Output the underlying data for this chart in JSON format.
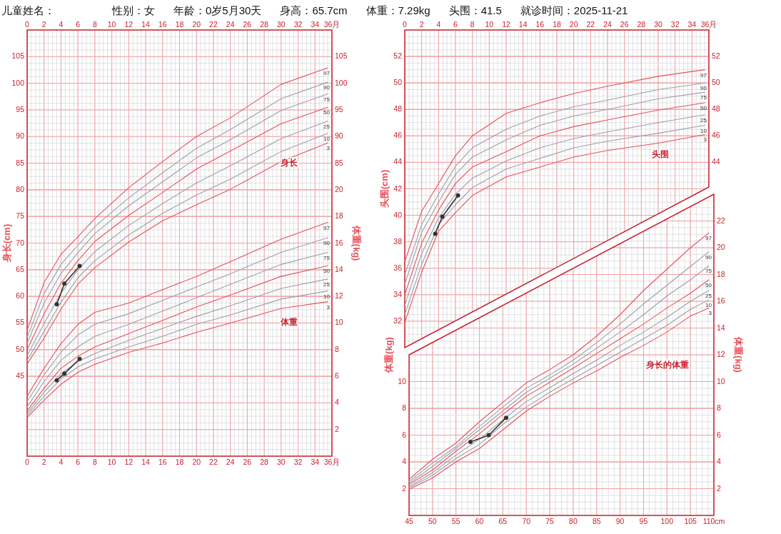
{
  "chart_data": [
    {
      "type": "other",
      "annotations": [
        "儿童姓名：",
        "性别：女",
        "年龄：0岁5月30天",
        "身高：65.7cm",
        "体重：7.29kg",
        "头围：41.5",
        "就诊时间：2025-11-21"
      ]
    },
    {
      "type": "line",
      "ylabel": "身长(cm)",
      "y2label": "体重(kg)",
      "grid": true,
      "xlim": [
        0,
        36
      ],
      "xticks": [
        0,
        2,
        4,
        6,
        8,
        10,
        12,
        14,
        16,
        18,
        20,
        22,
        24,
        26,
        28,
        30,
        32,
        34,
        {
          "value": 36,
          "label": "36月"
        }
      ],
      "x2lim": [
        0,
        36
      ],
      "x2ticks": [
        0,
        2,
        4,
        6,
        8,
        10,
        12,
        14,
        16,
        18,
        20,
        22,
        24,
        26,
        28,
        30,
        32,
        34,
        {
          "value": 36,
          "label": "36月"
        }
      ],
      "ylim": [
        30,
        110
      ],
      "yticks": [
        45,
        50,
        55,
        60,
        65,
        70,
        75,
        80,
        85,
        90,
        95,
        100,
        105
      ],
      "y2lim": [
        0,
        32
      ],
      "y2ticks": [
        2,
        4,
        6,
        8,
        10,
        12,
        14,
        16,
        18,
        20
      ],
      "y3lim": [
        30,
        110
      ],
      "y3ticks": [
        85,
        90,
        95,
        100,
        105
      ],
      "annotations": [
        "身长",
        "体重"
      ],
      "series": [
        {
          "name": "97",
          "color": "#e8505a",
          "x": [
            0,
            2,
            4,
            6,
            8,
            12,
            16,
            20,
            24,
            30,
            35.5
          ],
          "values": [
            53.6,
            62.6,
            67.9,
            71.2,
            74.6,
            80.4,
            85.3,
            90.0,
            93.5,
            99.8,
            102.9
          ]
        },
        {
          "name": "90",
          "color": "#9aa0a8",
          "x": [
            0,
            2,
            4,
            6,
            8,
            12,
            16,
            20,
            24,
            30,
            35.5
          ],
          "values": [
            52.3,
            60.5,
            66.0,
            69.6,
            73.1,
            78.5,
            83.2,
            87.8,
            91.3,
            97.1,
            100.2
          ]
        },
        {
          "name": "75",
          "color": "#9aa0a8",
          "x": [
            0,
            2,
            4,
            6,
            8,
            12,
            16,
            20,
            24,
            30,
            35.5
          ],
          "values": [
            51.2,
            58.7,
            64.3,
            68.2,
            71.8,
            77.0,
            81.5,
            86.0,
            89.4,
            94.9,
            98.0
          ]
        },
        {
          "name": "50",
          "color": "#e8505a",
          "x": [
            0,
            2,
            4,
            6,
            8,
            12,
            16,
            20,
            24,
            30,
            35.5
          ],
          "values": [
            50.0,
            56.7,
            62.5,
            66.7,
            70.3,
            75.2,
            79.5,
            83.9,
            87.3,
            92.4,
            95.5
          ]
        },
        {
          "name": "25",
          "color": "#9aa0a8",
          "x": [
            0,
            2,
            4,
            6,
            8,
            12,
            16,
            20,
            24,
            30,
            35.5
          ],
          "values": [
            48.9,
            54.9,
            60.6,
            65.0,
            68.4,
            73.3,
            77.4,
            81.3,
            84.5,
            89.6,
            92.9
          ]
        },
        {
          "name": "10",
          "color": "#9aa0a8",
          "x": [
            0,
            2,
            4,
            6,
            8,
            12,
            16,
            20,
            24,
            30,
            35.5
          ],
          "values": [
            48.0,
            53.4,
            58.9,
            63.5,
            66.7,
            71.5,
            75.6,
            79.0,
            82.0,
            87.2,
            90.6
          ]
        },
        {
          "name": "3",
          "color": "#e8505a",
          "x": [
            0,
            2,
            4,
            6,
            8,
            12,
            16,
            20,
            24,
            30,
            35.5
          ],
          "values": [
            47.3,
            52.2,
            57.6,
            62.3,
            65.4,
            70.2,
            74.2,
            77.2,
            80.1,
            85.3,
            88.8
          ]
        },
        {
          "name": "97",
          "color": "#e8505a",
          "axis": "y2",
          "x": [
            0,
            2,
            4,
            6,
            8,
            12,
            16,
            20,
            24,
            30,
            35.5
          ],
          "values": [
            4.5,
            6.6,
            8.45,
            9.9,
            10.8,
            11.5,
            12.5,
            13.5,
            14.6,
            16.3,
            17.55
          ]
        },
        {
          "name": "90",
          "color": "#9aa0a8",
          "axis": "y2",
          "x": [
            0,
            2,
            4,
            6,
            8,
            12,
            16,
            20,
            24,
            30,
            35.5
          ],
          "values": [
            4.1,
            6.1,
            7.8,
            9.1,
            9.9,
            10.7,
            11.7,
            12.7,
            13.7,
            15.3,
            16.4
          ]
        },
        {
          "name": "75",
          "color": "#9aa0a8",
          "axis": "y2",
          "x": [
            0,
            2,
            4,
            6,
            8,
            12,
            16,
            20,
            24,
            30,
            35.5
          ],
          "values": [
            3.7,
            5.6,
            7.2,
            8.2,
            9.0,
            9.9,
            10.9,
            11.9,
            12.9,
            14.4,
            15.3
          ]
        },
        {
          "name": "50",
          "color": "#e8505a",
          "axis": "y2",
          "x": [
            0,
            2,
            4,
            6,
            8,
            12,
            16,
            20,
            24,
            30,
            35.5
          ],
          "values": [
            3.4,
            5.1,
            6.6,
            7.5,
            8.2,
            9.2,
            10.2,
            11.2,
            12.1,
            13.5,
            14.3
          ]
        },
        {
          "name": "25",
          "color": "#9aa0a8",
          "axis": "y2",
          "x": [
            0,
            2,
            4,
            6,
            8,
            12,
            16,
            20,
            24,
            30,
            35.5
          ],
          "values": [
            3.2,
            4.8,
            6.2,
            7.1,
            7.7,
            8.7,
            9.6,
            10.5,
            11.3,
            12.6,
            13.3
          ]
        },
        {
          "name": "10",
          "color": "#9aa0a8",
          "axis": "y2",
          "x": [
            0,
            2,
            4,
            6,
            8,
            12,
            16,
            20,
            24,
            30,
            35.5
          ],
          "values": [
            3.05,
            4.5,
            5.8,
            6.7,
            7.3,
            8.2,
            9.0,
            9.9,
            10.6,
            11.8,
            12.4
          ]
        },
        {
          "name": "3",
          "color": "#e8505a",
          "axis": "y2",
          "x": [
            0,
            2,
            4,
            6,
            8,
            12,
            16,
            20,
            24,
            30,
            35.5
          ],
          "values": [
            2.9,
            4.2,
            5.4,
            6.3,
            6.9,
            7.8,
            8.5,
            9.3,
            10.0,
            11.1,
            11.6
          ]
        },
        {
          "color": "#333333",
          "marker": "circle",
          "x": [
            3.5,
            4.4,
            6.2
          ],
          "values": [
            58.5,
            62.4,
            65.7
          ]
        },
        {
          "color": "#333333",
          "marker": "circle",
          "axis": "y2",
          "x": [
            3.5,
            4.4,
            6.2
          ],
          "values": [
            5.7,
            6.2,
            7.3
          ]
        }
      ]
    },
    {
      "type": "line",
      "ylabel": "头围(cm)",
      "grid": true,
      "xlim": [
        0,
        36
      ],
      "x2lim": [
        0,
        36
      ],
      "x2ticks": [
        0,
        2,
        4,
        6,
        8,
        10,
        12,
        14,
        16,
        18,
        20,
        22,
        24,
        26,
        28,
        30,
        32,
        34,
        {
          "value": 36,
          "label": "36月"
        }
      ],
      "ylim": [
        30,
        54
      ],
      "yticks": [
        32,
        34,
        36,
        38,
        40,
        42,
        44,
        46,
        48,
        50,
        52
      ],
      "y2lim": [
        30,
        54
      ],
      "y2ticks": [
        44,
        46,
        48,
        50,
        52
      ],
      "annotations": [
        "头围"
      ],
      "series": [
        {
          "name": "97",
          "color": "#e8505a",
          "x": [
            0,
            2,
            4,
            6,
            8,
            12,
            16,
            20,
            24,
            30,
            35.5
          ],
          "values": [
            36.5,
            40.3,
            42.4,
            44.5,
            46.0,
            47.7,
            48.5,
            49.2,
            49.75,
            50.5,
            51.0
          ]
        },
        {
          "name": "90",
          "color": "#9aa0a8",
          "x": [
            0,
            2,
            4,
            6,
            8,
            12,
            16,
            20,
            24,
            30,
            35.5
          ],
          "values": [
            35.5,
            39.3,
            41.6,
            43.7,
            45.1,
            46.5,
            47.5,
            48.2,
            48.7,
            49.5,
            50.0
          ]
        },
        {
          "name": "75",
          "color": "#9aa0a8",
          "x": [
            0,
            2,
            4,
            6,
            8,
            12,
            16,
            20,
            24,
            30,
            35.5
          ],
          "values": [
            34.8,
            38.7,
            41.0,
            43.1,
            44.4,
            45.7,
            46.8,
            47.5,
            48.0,
            48.8,
            49.3
          ]
        },
        {
          "name": "50",
          "color": "#e8505a",
          "x": [
            0,
            2,
            4,
            6,
            8,
            12,
            16,
            20,
            24,
            30,
            35.5
          ],
          "values": [
            34.0,
            37.9,
            40.4,
            42.4,
            43.65,
            44.8,
            46.0,
            46.7,
            47.2,
            47.95,
            48.5
          ]
        },
        {
          "name": "25",
          "color": "#9aa0a8",
          "x": [
            0,
            2,
            4,
            6,
            8,
            12,
            16,
            20,
            24,
            30,
            35.5
          ],
          "values": [
            33.2,
            37.1,
            39.8,
            41.6,
            42.8,
            44.1,
            45.1,
            45.8,
            46.3,
            47.0,
            47.6
          ]
        },
        {
          "name": "10",
          "color": "#9aa0a8",
          "x": [
            0,
            2,
            4,
            6,
            8,
            12,
            16,
            20,
            24,
            30,
            35.5
          ],
          "values": [
            32.5,
            36.3,
            39.3,
            40.8,
            42.1,
            43.5,
            44.3,
            45.1,
            45.6,
            46.2,
            46.8
          ]
        },
        {
          "name": "3",
          "color": "#e8505a",
          "x": [
            0,
            2,
            4,
            6,
            8,
            12,
            16,
            20,
            24,
            30,
            35.5
          ],
          "values": [
            31.9,
            35.7,
            38.8,
            40.2,
            41.5,
            42.9,
            43.65,
            44.4,
            44.9,
            45.45,
            46.1
          ]
        },
        {
          "color": "#333333",
          "marker": "circle",
          "x": [
            3.6,
            4.45,
            6.3
          ],
          "values": [
            38.6,
            39.9,
            41.5
          ]
        }
      ]
    },
    {
      "type": "line",
      "ylabel": "体重(kg)",
      "y2label": "体重(kg)",
      "grid": true,
      "xlim": [
        45,
        110
      ],
      "xticks": [
        45,
        50,
        55,
        60,
        65,
        70,
        75,
        80,
        85,
        90,
        95,
        100,
        105,
        {
          "value": 110,
          "label": "110cm"
        }
      ],
      "ylim": [
        0,
        24
      ],
      "yticks": [
        2,
        4,
        6,
        8,
        10
      ],
      "y2lim": [
        0,
        24
      ],
      "y2ticks": [
        2,
        4,
        6,
        8,
        10,
        12,
        14,
        16,
        18,
        20,
        22
      ],
      "annotations": [
        "身长的体重"
      ],
      "series": [
        {
          "name": "97",
          "color": "#e8505a",
          "x": [
            45,
            50,
            55,
            60,
            65,
            70,
            75,
            80,
            85,
            90,
            95,
            100,
            105,
            108.9
          ],
          "values": [
            2.7,
            4.2,
            5.4,
            7.0,
            8.45,
            9.9,
            10.9,
            12.0,
            13.4,
            15.0,
            16.8,
            18.4,
            20.0,
            21.1
          ]
        },
        {
          "name": "90",
          "color": "#9aa0a8",
          "x": [
            45,
            50,
            55,
            60,
            65,
            70,
            75,
            80,
            85,
            90,
            95,
            100,
            105,
            108.9
          ],
          "values": [
            2.55,
            3.9,
            5.15,
            6.65,
            8.1,
            9.5,
            10.5,
            11.6,
            12.9,
            14.3,
            15.8,
            17.2,
            18.6,
            19.7
          ]
        },
        {
          "name": "75",
          "color": "#9aa0a8",
          "x": [
            45,
            50,
            55,
            60,
            65,
            70,
            75,
            80,
            85,
            90,
            95,
            100,
            105,
            108.9
          ],
          "values": [
            2.4,
            3.65,
            5.0,
            6.4,
            7.8,
            9.2,
            10.25,
            11.3,
            12.5,
            13.7,
            15.0,
            16.4,
            17.6,
            18.65
          ]
        },
        {
          "name": "50",
          "color": "#e8505a",
          "x": [
            45,
            50,
            55,
            60,
            65,
            70,
            75,
            80,
            85,
            90,
            95,
            100,
            105,
            108.9
          ],
          "values": [
            2.3,
            3.4,
            4.8,
            6.1,
            7.55,
            8.9,
            9.95,
            11.0,
            12.1,
            13.2,
            14.3,
            15.5,
            16.6,
            17.6
          ]
        },
        {
          "name": "25",
          "color": "#9aa0a8",
          "x": [
            45,
            50,
            55,
            60,
            65,
            70,
            75,
            80,
            85,
            90,
            95,
            100,
            105,
            108.9
          ],
          "values": [
            2.15,
            3.2,
            4.5,
            5.7,
            7.15,
            8.5,
            9.55,
            10.6,
            11.6,
            12.7,
            13.7,
            14.8,
            16.0,
            16.8
          ]
        },
        {
          "name": "10",
          "color": "#9aa0a8",
          "x": [
            45,
            50,
            55,
            60,
            65,
            70,
            75,
            80,
            85,
            90,
            95,
            100,
            105,
            108.9
          ],
          "values": [
            2.05,
            3.0,
            4.25,
            5.3,
            6.8,
            8.1,
            9.2,
            10.2,
            11.2,
            12.2,
            13.2,
            14.2,
            15.4,
            16.1
          ]
        },
        {
          "name": "3",
          "color": "#e8505a",
          "x": [
            45,
            50,
            55,
            60,
            65,
            70,
            75,
            80,
            85,
            90,
            95,
            100,
            105,
            108.9
          ],
          "values": [
            1.95,
            2.8,
            4.0,
            5.0,
            6.4,
            7.8,
            8.9,
            9.9,
            10.8,
            11.8,
            12.7,
            13.7,
            14.9,
            15.5
          ]
        },
        {
          "color": "#333333",
          "marker": "circle",
          "x": [
            58.1,
            62.0,
            65.7
          ],
          "values": [
            5.5,
            6.0,
            7.3
          ]
        }
      ]
    }
  ]
}
